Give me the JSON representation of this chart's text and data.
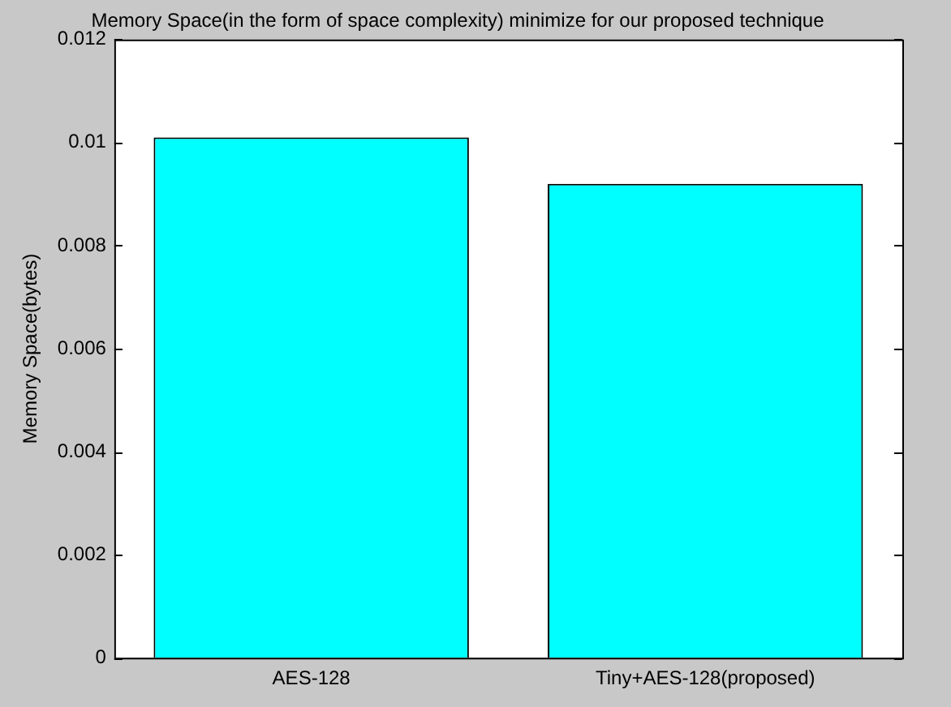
{
  "chart_data": {
    "type": "bar",
    "title": "Memory Space(in the form of space complexity) minimize for our proposed technique",
    "ylabel": "Memory Space(bytes)",
    "categories": [
      "AES-128",
      "Tiny+AES-128(proposed)"
    ],
    "values": [
      0.0101,
      0.0092
    ],
    "color": "#00ffff",
    "ylim": [
      0,
      0.012
    ],
    "yticks": [
      0,
      0.002,
      0.004,
      0.006,
      0.008,
      0.01,
      0.012
    ],
    "grid": false
  }
}
